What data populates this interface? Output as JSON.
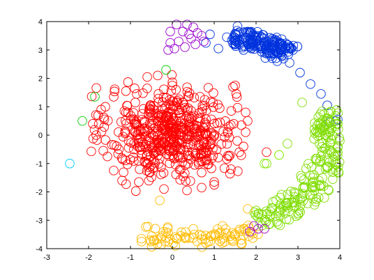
{
  "chart_data": {
    "type": "scatter",
    "title": "",
    "xlabel": "",
    "ylabel": "",
    "xlim": [
      -3,
      4
    ],
    "ylim": [
      -4,
      4
    ],
    "xticks": [
      -3,
      -2,
      -1,
      0,
      1,
      2,
      3,
      4
    ],
    "yticks": [
      -4,
      -3,
      -2,
      -1,
      0,
      1,
      2,
      3,
      4
    ],
    "xtick_labels": [
      "-3",
      "-2",
      "-1",
      "0",
      "1",
      "2",
      "3",
      "4"
    ],
    "ytick_labels": [
      "-4",
      "-3",
      "-2",
      "-1",
      "0",
      "1",
      "2",
      "3",
      "4"
    ],
    "grid": false,
    "legend": "none",
    "marker": "open-circle",
    "clusters": [
      {
        "color": "#ff0000",
        "shape": "blob",
        "center": [
          0.0,
          0.1
        ],
        "spread": [
          0.75,
          0.8
        ],
        "count": 520,
        "points": [
          [
            1.5,
            1.75
          ],
          [
            1.45,
            1.7
          ],
          [
            1.75,
            0.8
          ],
          [
            1.8,
            0.5
          ],
          [
            1.65,
            0.35
          ],
          [
            1.75,
            0.1
          ],
          [
            1.55,
            -0.2
          ],
          [
            1.7,
            -0.4
          ],
          [
            1.6,
            -0.6
          ],
          [
            1.35,
            -0.75
          ],
          [
            1.4,
            -1.2
          ],
          [
            1.0,
            -1.65
          ],
          [
            1.0,
            -1.75
          ],
          [
            0.7,
            -1.85
          ],
          [
            0.35,
            -1.95
          ],
          [
            -0.2,
            -1.9
          ],
          [
            -0.8,
            -1.65
          ],
          [
            -1.2,
            -1.6
          ],
          [
            -1.4,
            -1.25
          ],
          [
            -1.55,
            -0.75
          ],
          [
            -1.65,
            -0.55
          ],
          [
            -1.9,
            0.4
          ],
          [
            -1.7,
            0.9
          ],
          [
            -1.4,
            1.35
          ],
          [
            -0.9,
            1.65
          ],
          [
            -0.6,
            2.05
          ],
          [
            -0.35,
            2.1
          ],
          [
            0.0,
            1.75
          ],
          [
            2.25,
            -0.6
          ],
          [
            -1.6,
            1.0
          ],
          [
            -0.85,
            1.45
          ],
          [
            1.35,
            0.3
          ]
        ]
      },
      {
        "color": "#0033dd",
        "shape": "arc",
        "arc_center": [
          0.5,
          -0.1
        ],
        "radius": [
          3.72,
          3.72
        ],
        "angle_deg": [
          52,
          75
        ],
        "width": 0.6,
        "count": 190,
        "points": [
          [
            0.9,
            3.55
          ],
          [
            1.3,
            3.45
          ],
          [
            1.5,
            3.35
          ],
          [
            1.9,
            3.25
          ],
          [
            2.5,
            2.9
          ],
          [
            2.8,
            2.55
          ],
          [
            3.05,
            2.2
          ],
          [
            3.3,
            1.8
          ],
          [
            3.55,
            1.45
          ],
          [
            3.7,
            1.05
          ],
          [
            3.95,
            0.55
          ],
          [
            3.9,
            0.5
          ],
          [
            3.75,
            0.45
          ],
          [
            0.8,
            3.25
          ],
          [
            1.1,
            3.05
          ]
        ]
      },
      {
        "color": "#7fdd00",
        "shape": "arc",
        "arc_center": [
          0.5,
          -0.1
        ],
        "radius": [
          3.35,
          3.35
        ],
        "angle_deg": [
          -62,
          17
        ],
        "width": 0.8,
        "count": 210,
        "points": [
          [
            3.1,
            1.15
          ],
          [
            3.85,
            0.5
          ],
          [
            4.0,
            -0.2
          ],
          [
            3.95,
            -0.45
          ],
          [
            3.7,
            -1.1
          ],
          [
            3.55,
            -1.75
          ],
          [
            3.35,
            -2.1
          ],
          [
            2.95,
            -2.5
          ],
          [
            2.7,
            -2.75
          ],
          [
            2.1,
            -3.1
          ],
          [
            2.3,
            -3.15
          ],
          [
            2.5,
            -3.05
          ],
          [
            2.25,
            -1.0
          ],
          [
            2.55,
            -0.7
          ],
          [
            2.75,
            -0.3
          ]
        ]
      },
      {
        "color": "#ffbb00",
        "shape": "arc",
        "arc_center": [
          0.5,
          -0.1
        ],
        "radius": [
          3.6,
          3.6
        ],
        "angle_deg": [
          -110,
          -65
        ],
        "width": 0.55,
        "count": 85,
        "points": [
          [
            -0.1,
            -3.45
          ],
          [
            0.2,
            -3.55
          ],
          [
            0.8,
            -3.8
          ],
          [
            1.5,
            -3.55
          ],
          [
            1.2,
            -3.2
          ],
          [
            0.5,
            -3.3
          ],
          [
            1.8,
            -2.6
          ],
          [
            1.7,
            -3.3
          ]
        ]
      },
      {
        "color": "#9900cc",
        "shape": "group",
        "points": [
          [
            -0.05,
            3.25
          ],
          [
            0.15,
            3.3
          ],
          [
            0.3,
            3.1
          ],
          [
            0.45,
            3.4
          ],
          [
            0.6,
            3.6
          ],
          [
            0.7,
            3.5
          ],
          [
            -0.05,
            3.65
          ],
          [
            0.1,
            3.9
          ],
          [
            0.35,
            3.9
          ],
          [
            0.5,
            3.8
          ],
          [
            0.75,
            3.3
          ],
          [
            0.05,
            3.05
          ],
          [
            0.4,
            3.55
          ],
          [
            0.25,
            3.65
          ],
          [
            -0.1,
            3.0
          ],
          [
            0.55,
            3.2
          ],
          [
            1.85,
            -3.4
          ],
          [
            2.05,
            -3.3
          ],
          [
            2.2,
            -3.3
          ],
          [
            1.95,
            -3.2
          ]
        ]
      },
      {
        "color": "#00cc00",
        "shape": "outliers",
        "points": [
          [
            -1.85,
            1.35
          ],
          [
            -2.15,
            0.5
          ],
          [
            -0.15,
            2.3
          ]
        ]
      },
      {
        "color": "#88ee00",
        "shape": "outliers",
        "points": [
          [
            2.2,
            -1.0
          ],
          [
            2.55,
            -0.7
          ]
        ]
      },
      {
        "color": "#00ccff",
        "shape": "outliers",
        "points": [
          [
            -2.45,
            -1.0
          ]
        ]
      },
      {
        "color": "#ffbb00",
        "shape": "outliers",
        "points": [
          [
            -0.3,
            -2.3
          ]
        ]
      }
    ]
  }
}
